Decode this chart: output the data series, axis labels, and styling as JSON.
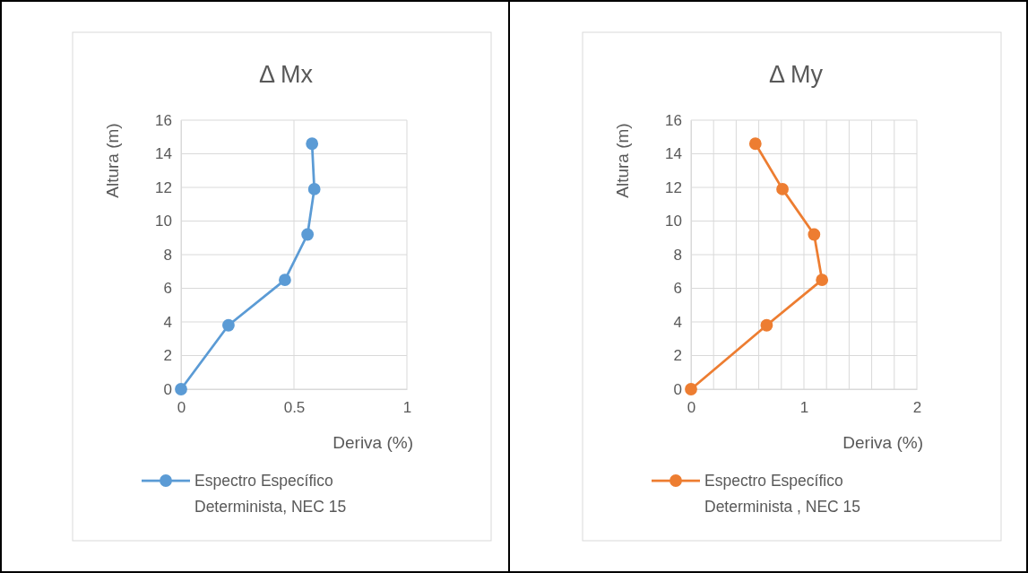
{
  "chart_data": [
    {
      "type": "line",
      "title": "Δ Mx",
      "xlabel": "Deriva (%)",
      "ylabel": "Altura (m)",
      "xlim": [
        0,
        1
      ],
      "xticks": [
        0,
        0.5,
        1
      ],
      "ylim": [
        0,
        16
      ],
      "yticks": [
        0,
        2,
        4,
        6,
        8,
        10,
        12,
        14,
        16
      ],
      "grid": true,
      "legend": "bottom",
      "marker": "circle",
      "line_style": "solid",
      "series": [
        {
          "name": "Espectro Específico Determinista, NEC 15",
          "color": "#5b9bd5",
          "x": [
            0,
            0.21,
            0.46,
            0.56,
            0.59,
            0.58
          ],
          "values": [
            0,
            3.8,
            6.5,
            9.2,
            11.9,
            14.6
          ]
        }
      ]
    },
    {
      "type": "line",
      "title": "Δ My",
      "xlabel": "Deriva (%)",
      "ylabel": "Altura (m)",
      "xlim": [
        0,
        2
      ],
      "xticks": [
        0,
        {
          "value": 0.2,
          "label": null
        },
        {
          "value": 0.4,
          "label": null
        },
        {
          "value": 0.6,
          "label": null
        },
        {
          "value": 0.8,
          "label": null
        },
        1,
        {
          "value": 1.2,
          "label": null
        },
        {
          "value": 1.4,
          "label": null
        },
        {
          "value": 1.6,
          "label": null
        },
        {
          "value": 1.8,
          "label": null
        },
        2
      ],
      "ylim": [
        0,
        16
      ],
      "yticks": [
        0,
        2,
        4,
        6,
        8,
        10,
        12,
        14,
        16
      ],
      "grid": true,
      "legend": "bottom",
      "marker": "circle",
      "line_style": "solid",
      "series": [
        {
          "name": "Espectro Específico Determinista , NEC 15",
          "color": "#ed7d31",
          "x": [
            0,
            0.67,
            1.16,
            1.09,
            0.81,
            0.57
          ],
          "values": [
            0,
            3.8,
            6.5,
            9.2,
            11.9,
            14.6
          ]
        }
      ]
    }
  ]
}
